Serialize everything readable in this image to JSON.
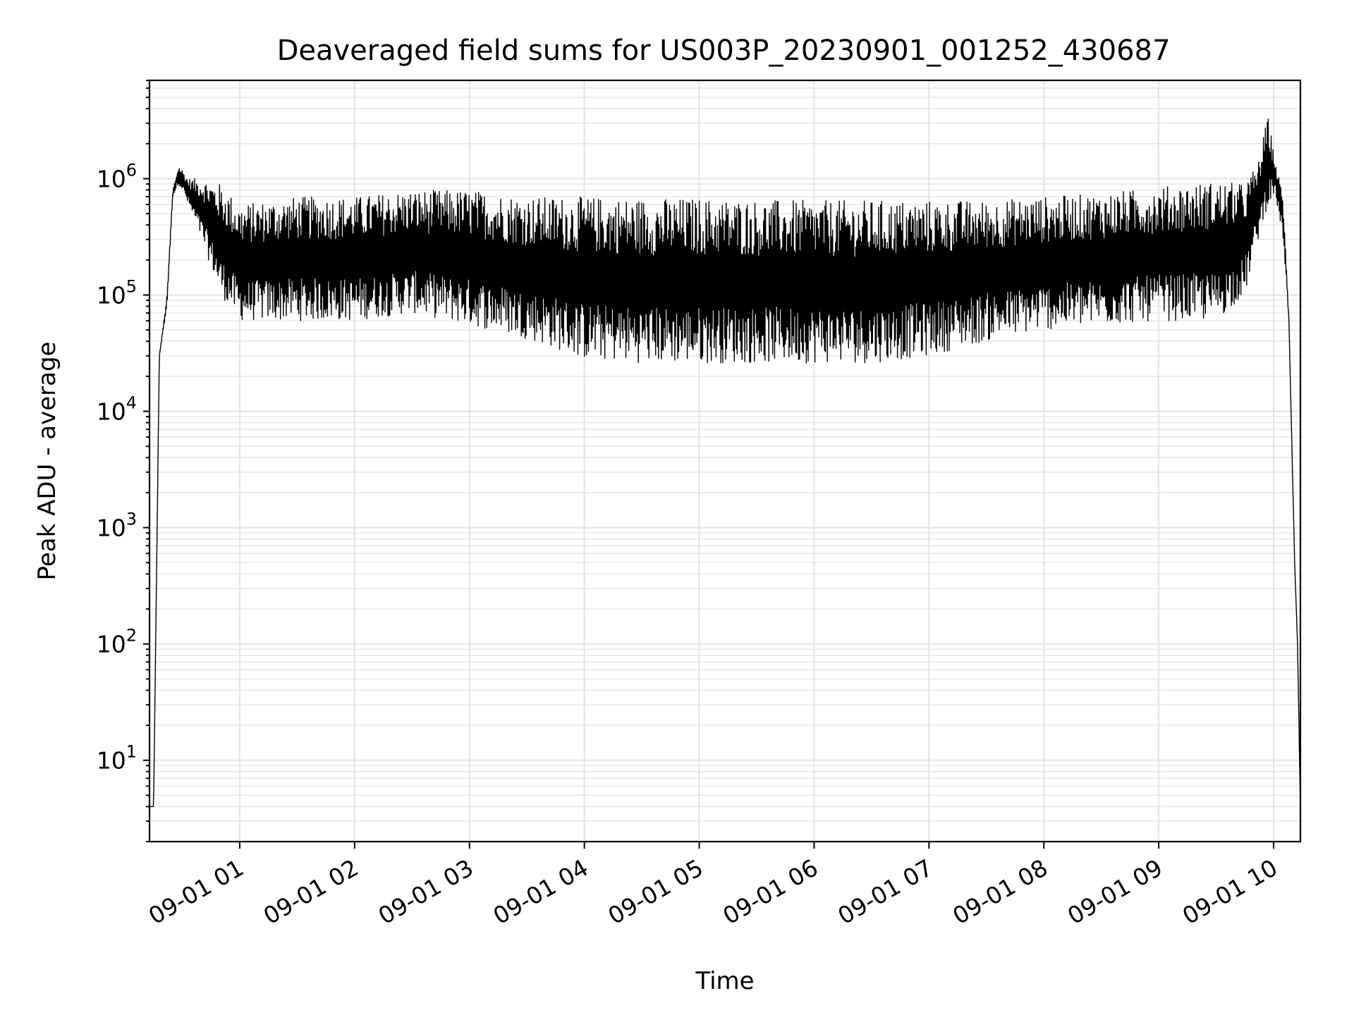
{
  "chart_data": {
    "type": "line",
    "title": "Deaveraged field sums for US003P_20230901_001252_430687",
    "xlabel": "Time",
    "ylabel": "Peak ADU - average",
    "yscale": "log",
    "grid": "on",
    "x_range": [
      "2023-09-01 00:12:52",
      "2023-09-01 10:14:00"
    ],
    "ylim": [
      2,
      7000000
    ],
    "x_ticks": [
      "09-01 01",
      "09-01 02",
      "09-01 03",
      "09-01 04",
      "09-01 05",
      "09-01 06",
      "09-01 07",
      "09-01 08",
      "09-01 09",
      "09-01 10"
    ],
    "y_ticks": [
      {
        "value": 10,
        "base": "10",
        "exp": "1"
      },
      {
        "value": 100,
        "base": "10",
        "exp": "2"
      },
      {
        "value": 1000,
        "base": "10",
        "exp": "3"
      },
      {
        "value": 10000,
        "base": "10",
        "exp": "4"
      },
      {
        "value": 100000,
        "base": "10",
        "exp": "5"
      },
      {
        "value": 1000000,
        "base": "10",
        "exp": "6"
      }
    ],
    "series": [
      {
        "color": "#000000",
        "envelope": {
          "time": [
            "2023-09-01 00:12:52",
            "2023-09-01 00:15:00",
            "2023-09-01 00:18:00",
            "2023-09-01 00:22:00",
            "2023-09-01 00:25:00",
            "2023-09-01 00:28:00",
            "2023-09-01 00:30:00",
            "2023-09-01 00:33:00",
            "2023-09-01 00:40:00",
            "2023-09-01 00:50:00",
            "2023-09-01 01:00:00",
            "2023-09-01 01:30:00",
            "2023-09-01 02:00:00",
            "2023-09-01 02:30:00",
            "2023-09-01 03:00:00",
            "2023-09-01 03:30:00",
            "2023-09-01 04:00:00",
            "2023-09-01 04:30:00",
            "2023-09-01 05:00:00",
            "2023-09-01 05:30:00",
            "2023-09-01 06:00:00",
            "2023-09-01 06:30:00",
            "2023-09-01 07:00:00",
            "2023-09-01 07:30:00",
            "2023-09-01 08:00:00",
            "2023-09-01 08:30:00",
            "2023-09-01 09:00:00",
            "2023-09-01 09:30:00",
            "2023-09-01 09:45:00",
            "2023-09-01 09:52:00",
            "2023-09-01 09:57:00",
            "2023-09-01 10:01:00",
            "2023-09-01 10:05:00",
            "2023-09-01 10:08:00",
            "2023-09-01 10:11:00",
            "2023-09-01 10:12:30",
            "2023-09-01 10:14:00"
          ],
          "low": [
            4,
            4,
            30000,
            80000,
            700000,
            900000,
            800000,
            600000,
            300000,
            100000,
            60000,
            60000,
            60000,
            70000,
            55000,
            42000,
            28000,
            26000,
            26000,
            26000,
            26000,
            26000,
            30000,
            40000,
            50000,
            55000,
            60000,
            60000,
            100000,
            300000,
            600000,
            700000,
            300000,
            60000,
            500,
            100,
            4
          ],
          "high": [
            4,
            4,
            30000,
            100000,
            800000,
            1300000,
            1200000,
            1000000,
            1000000,
            900000,
            600000,
            700000,
            700000,
            800000,
            800000,
            700000,
            700000,
            680000,
            680000,
            660000,
            650000,
            650000,
            650000,
            650000,
            700000,
            750000,
            850000,
            950000,
            900000,
            1400000,
            3500000,
            1400000,
            700000,
            60000,
            500,
            100,
            4
          ]
        }
      }
    ]
  }
}
